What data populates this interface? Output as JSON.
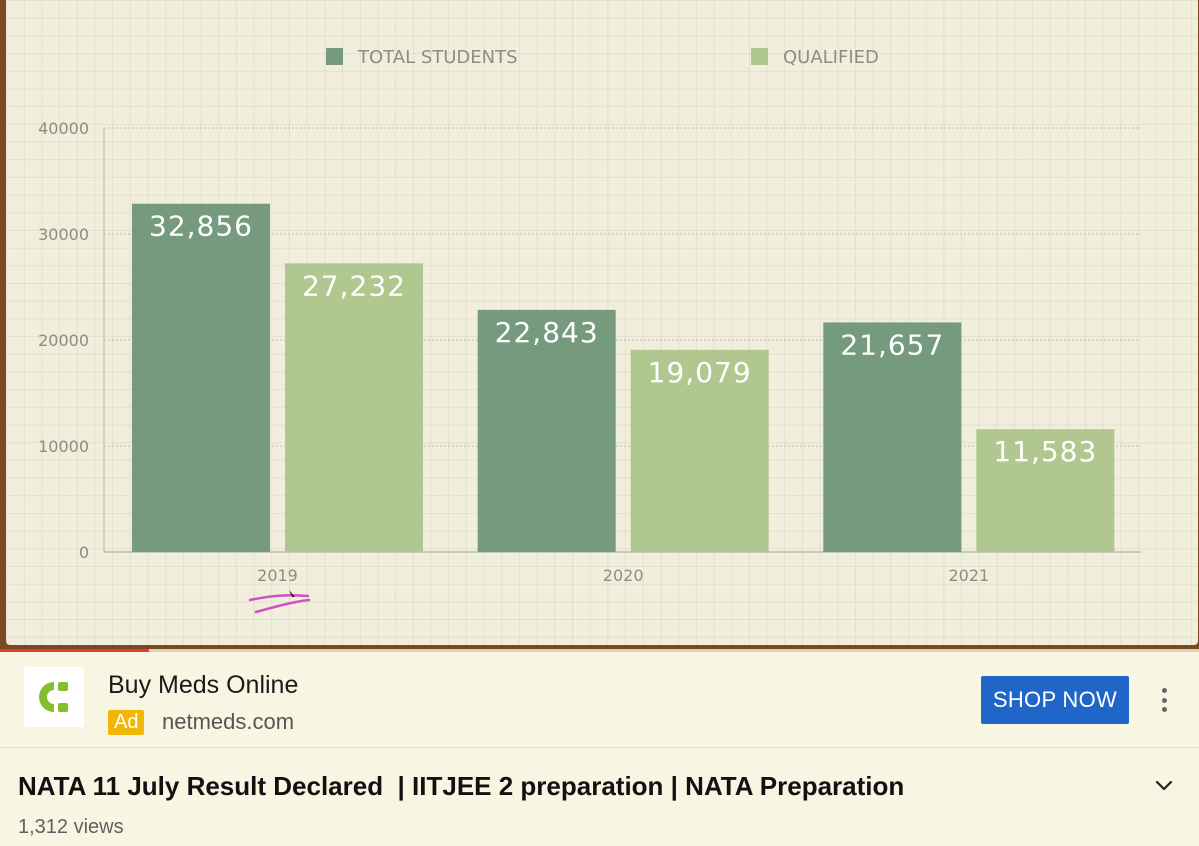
{
  "chart_data": {
    "type": "bar",
    "categories": [
      "2019",
      "2020",
      "2021"
    ],
    "series": [
      {
        "name": "TOTAL STUDENTS",
        "values": [
          32856,
          22843,
          21657
        ],
        "labels": [
          "32,856",
          "22,843",
          "21,657"
        ],
        "color": "#769a7d"
      },
      {
        "name": "QUALIFIED",
        "values": [
          27232,
          19079,
          11583
        ],
        "labels": [
          "27,232",
          "19,079",
          "11,583"
        ],
        "color": "#b0c88f"
      }
    ],
    "yticks": [
      "0",
      "10000",
      "20000",
      "30000",
      "40000"
    ],
    "ylim": [
      0,
      40000
    ],
    "legend": "top",
    "grid": true
  },
  "ad": {
    "title": "Buy Meds Online",
    "badge": "Ad",
    "domain": "netmeds.com",
    "cta": "SHOP NOW",
    "logo_color": "#84bd2d"
  },
  "video": {
    "title": "NATA 11 July Result Declared  | IITJEE 2 preparation | NATA Preparation",
    "views": "1,312 views",
    "progress": 0.124
  }
}
